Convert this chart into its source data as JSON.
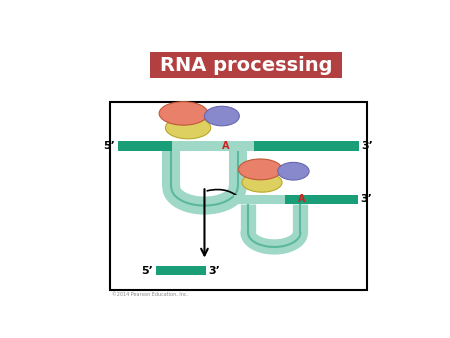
{
  "title": "RNA processing",
  "title_bg": "#b34040",
  "title_color": "#ffffff",
  "title_fontsize": 14,
  "bg_color": "#ffffff",
  "strand_dark": "#1a9e78",
  "strand_light": "#a0d8c8",
  "strand_edge": "#5bb89a",
  "protein_red": "#e8806a",
  "protein_yellow": "#ddd060",
  "protein_purple": "#8888cc",
  "label_A_color": "#cc2222",
  "text_color": "#000000",
  "copyright": "©2014 Pearson Education, Inc."
}
